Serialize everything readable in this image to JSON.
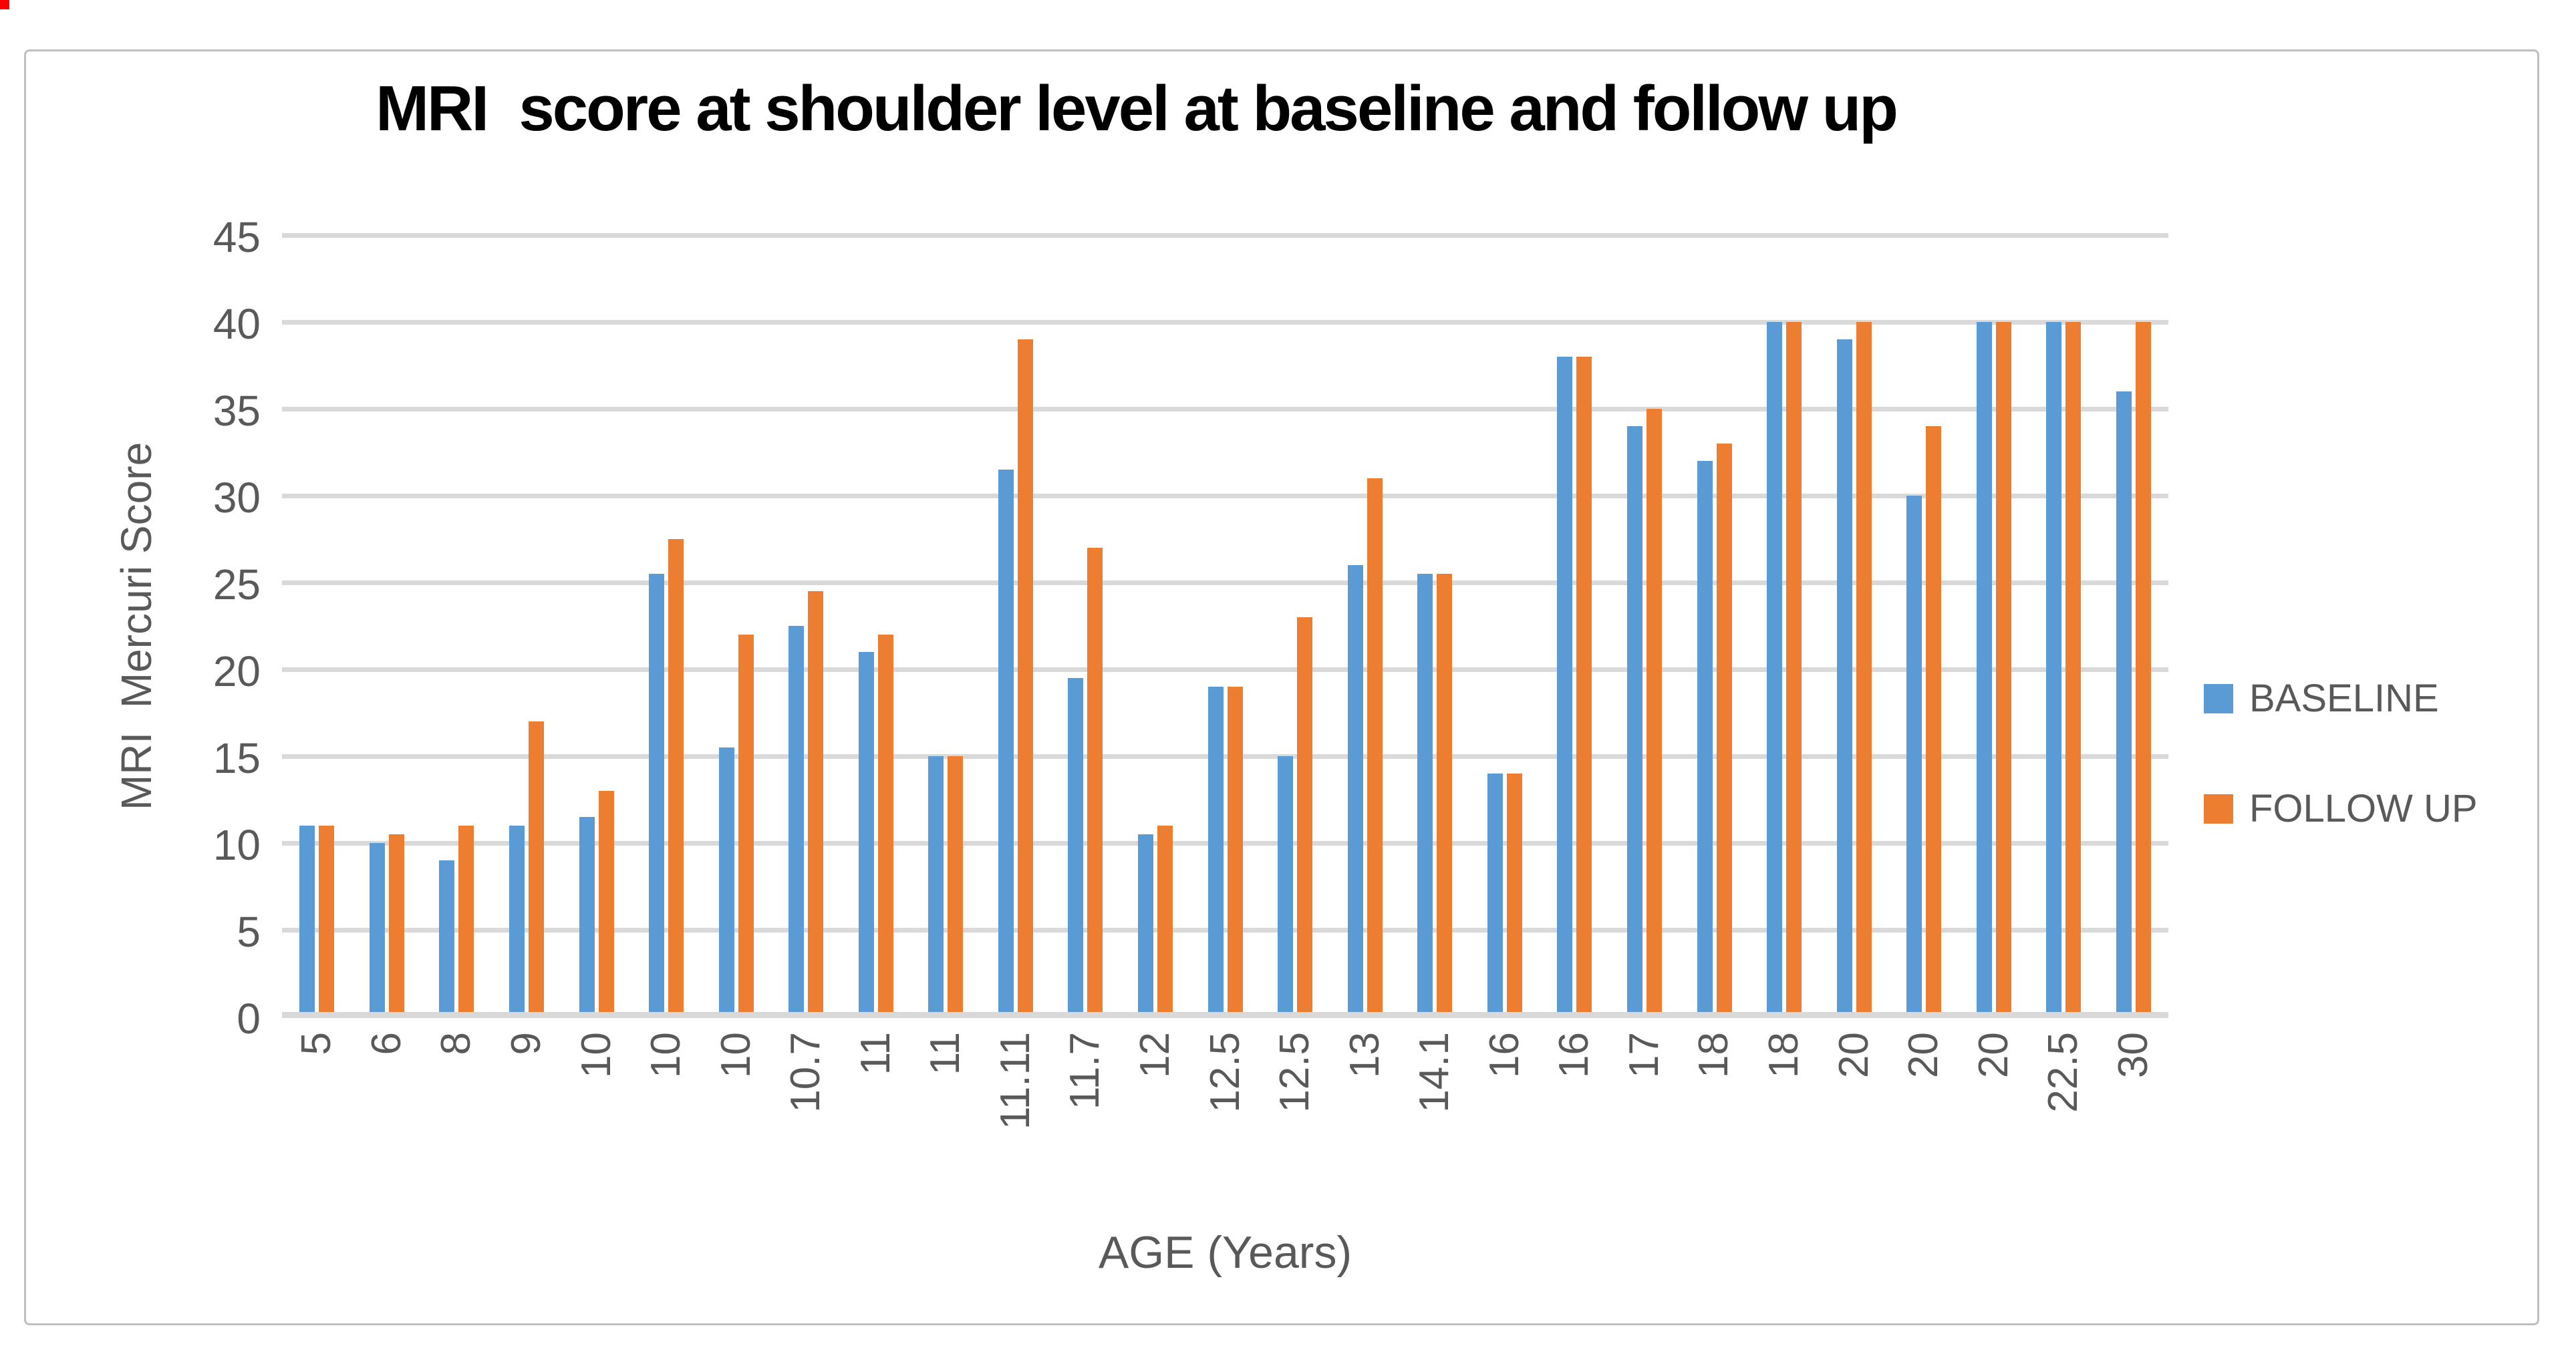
{
  "chart_data": {
    "type": "bar",
    "title": "MRI  score at shoulder level at baseline and follow up",
    "xlabel": "AGE (Years)",
    "ylabel": "MRI  Mercuri Score",
    "ylim": [
      0,
      45
    ],
    "ytick_step": 5,
    "y_ticks": [
      45,
      40,
      35,
      30,
      25,
      20,
      15,
      10,
      5,
      0
    ],
    "grid": true,
    "legend_position": "right",
    "categories": [
      "5",
      "6",
      "8",
      "9",
      "10",
      "10",
      "10",
      "10.7",
      "11",
      "11",
      "11.11",
      "11.7",
      "12",
      "12.5",
      "12.5",
      "13",
      "14.1",
      "16",
      "16",
      "17",
      "18",
      "18",
      "20",
      "20",
      "20",
      "22.5",
      "30"
    ],
    "series": [
      {
        "name": "BASELINE",
        "color": "#5B9BD5",
        "values": [
          11,
          10,
          9,
          11,
          11.5,
          25.5,
          15.5,
          22.5,
          21,
          15,
          31.5,
          19.5,
          10.5,
          19,
          15,
          26,
          25.5,
          14,
          38,
          34,
          32,
          40,
          39,
          30,
          40,
          40,
          36
        ]
      },
      {
        "name": "FOLLOW UP",
        "color": "#ED7D31",
        "values": [
          11,
          10.5,
          11,
          17,
          13,
          27.5,
          22,
          24.5,
          22,
          15,
          39,
          27,
          11,
          19,
          23,
          31,
          25.5,
          14,
          38,
          35,
          33,
          40,
          40,
          34,
          40,
          40,
          40
        ]
      }
    ]
  },
  "colors": {
    "gridline": "#D9D9D9",
    "axis_line": "#D9D9D9",
    "tick_label": "#595959",
    "title": "#000000",
    "frame_border": "#BFBFBF",
    "corner_artifact": "#FE0000"
  }
}
